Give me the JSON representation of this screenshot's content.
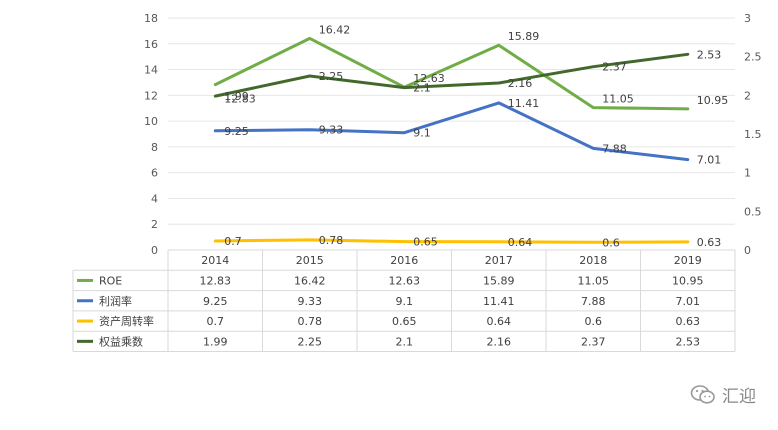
{
  "chart_data": {
    "type": "line",
    "title": "",
    "xlabel": "",
    "ylabel": "",
    "categories": [
      "2014",
      "2015",
      "2016",
      "2017",
      "2018",
      "2019"
    ],
    "y_left": {
      "ylim": [
        0,
        18
      ],
      "ticks": [
        "0",
        "2",
        "4",
        "6",
        "8",
        "10",
        "12",
        "14",
        "16",
        "18"
      ]
    },
    "y_right": {
      "ylim": [
        0,
        3
      ],
      "ticks": [
        "0",
        "0.5",
        "1",
        "1.5",
        "2",
        "2.5",
        "3"
      ]
    },
    "series": [
      {
        "name": "ROE",
        "axis": "left",
        "color": "#70ad47",
        "values": [
          12.83,
          16.42,
          12.63,
          15.89,
          11.05,
          10.95
        ],
        "labels": [
          "12.83",
          "16.42",
          "12.63",
          "15.89",
          "11.05",
          "10.95"
        ]
      },
      {
        "name": "利润率",
        "axis": "left",
        "color": "#4472c4",
        "values": [
          9.25,
          9.33,
          9.1,
          11.41,
          7.88,
          7.01
        ],
        "labels": [
          "9.25",
          "9.33",
          "9.1",
          "11.41",
          "7.88",
          "7.01"
        ]
      },
      {
        "name": "资产周转率",
        "axis": "left",
        "color": "#ffc000",
        "values": [
          0.7,
          0.78,
          0.65,
          0.64,
          0.6,
          0.63
        ],
        "labels": [
          "0.7",
          "0.78",
          "0.65",
          "0.64",
          "0.6",
          "0.63"
        ]
      },
      {
        "name": "权益乘数",
        "axis": "right",
        "color": "#43682b",
        "values": [
          1.99,
          2.25,
          2.1,
          2.16,
          2.37,
          2.53
        ],
        "labels": [
          "1.99",
          "2.25",
          "2.1",
          "2.16",
          "2.37",
          "2.53"
        ]
      }
    ],
    "grid": true,
    "legend": "data-table"
  },
  "watermark": {
    "text": "汇迎"
  }
}
